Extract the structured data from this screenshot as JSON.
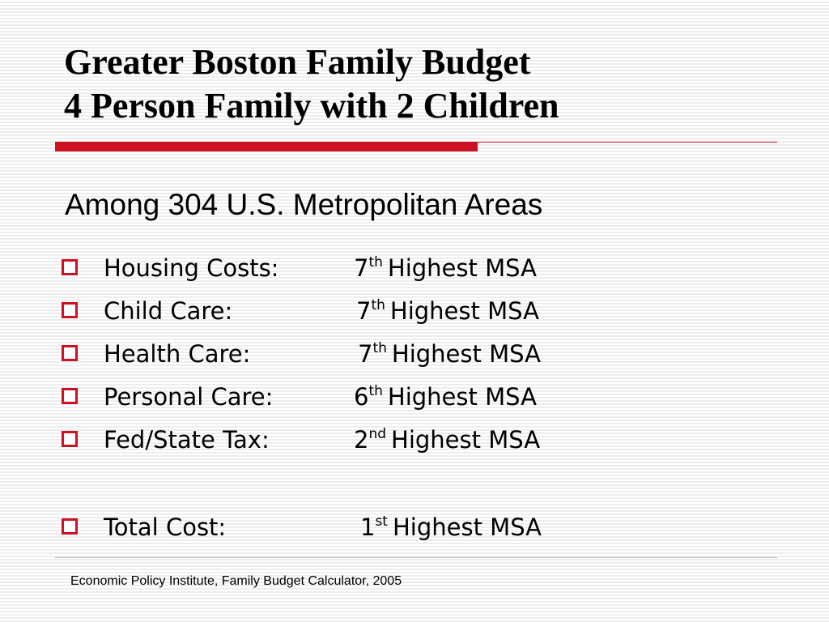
{
  "title": {
    "line1": "Greater Boston Family Budget",
    "line2": "4 Person Family with 2 Children"
  },
  "subtitle": "Among 304 U.S. Metropolitan Areas",
  "accent_color": "#cc1122",
  "bullet_icon": "hollow-square-icon",
  "items": [
    {
      "label": "Housing Costs:",
      "rank": "7",
      "suffix": "th",
      "text": "Highest MSA"
    },
    {
      "label": "Child Care:",
      "rank": "7",
      "suffix": "th",
      "text": "Highest MSA"
    },
    {
      "label": "Health Care:",
      "rank": "7",
      "suffix": "th",
      "text": "Highest MSA"
    },
    {
      "label": "Personal Care:",
      "rank": "6",
      "suffix": "th",
      "text": "Highest MSA"
    },
    {
      "label": "Fed/State Tax:",
      "rank": "2",
      "suffix": "nd",
      "text": "Highest MSA"
    }
  ],
  "total": {
    "label": "Total Cost:",
    "rank": "1",
    "suffix": "st",
    "text": "Highest MSA"
  },
  "source": "Economic Policy Institute, Family Budget Calculator, 2005"
}
